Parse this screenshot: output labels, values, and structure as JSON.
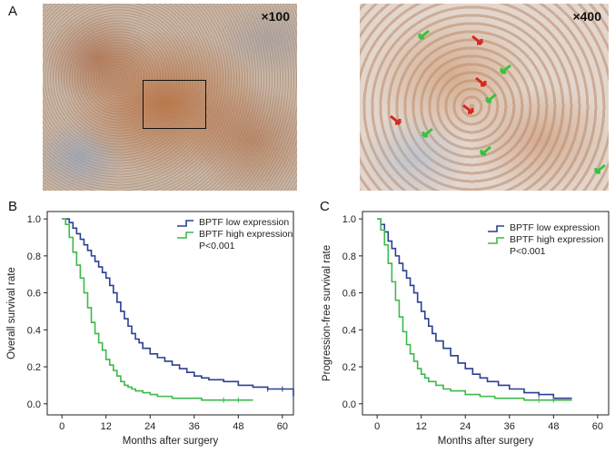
{
  "panels": {
    "A": {
      "letter": "A",
      "left_mag": "×100",
      "right_mag": "×400"
    },
    "B": {
      "letter": "B"
    },
    "C": {
      "letter": "C"
    }
  },
  "colors": {
    "low": "#2b3f8f",
    "high": "#3cb94a",
    "stain_brown": "#b8794e",
    "stain_blue": "#8aa6c4",
    "arrow_red": "#d8261f",
    "arrow_green": "#37c33c"
  },
  "chart_data": [
    {
      "id": "B",
      "type": "line",
      "xlabel": "Months after surgery",
      "ylabel": "Overall survival rate",
      "xlim": [
        -4,
        63
      ],
      "ylim": [
        -0.06,
        1.04
      ],
      "xticks": [
        0,
        12,
        24,
        36,
        48,
        60
      ],
      "yticks": [
        0.0,
        0.2,
        0.4,
        0.6,
        0.8,
        1.0
      ],
      "annotation": "P<0.001",
      "series": [
        {
          "name": "BPTF low expression",
          "color": "#2b3f8f",
          "x": [
            0,
            2,
            3,
            4,
            5,
            6,
            7,
            8,
            9,
            10,
            11,
            12,
            13,
            14,
            15,
            16,
            17,
            18,
            19,
            20,
            21,
            22,
            24,
            26,
            28,
            30,
            32,
            34,
            36,
            38,
            40,
            44,
            48,
            52,
            56,
            60,
            63
          ],
          "y": [
            1.0,
            0.98,
            0.95,
            0.92,
            0.89,
            0.86,
            0.83,
            0.8,
            0.77,
            0.74,
            0.71,
            0.68,
            0.64,
            0.6,
            0.55,
            0.5,
            0.46,
            0.42,
            0.38,
            0.35,
            0.33,
            0.3,
            0.27,
            0.25,
            0.23,
            0.21,
            0.19,
            0.17,
            0.15,
            0.14,
            0.13,
            0.12,
            0.1,
            0.09,
            0.08,
            0.08,
            0.04
          ]
        },
        {
          "name": "BPTF high expression",
          "color": "#3cb94a",
          "x": [
            0,
            1,
            2,
            3,
            4,
            5,
            6,
            7,
            8,
            9,
            10,
            11,
            12,
            13,
            14,
            15,
            16,
            17,
            18,
            19,
            20,
            22,
            24,
            26,
            28,
            30,
            34,
            38,
            44,
            48,
            52
          ],
          "y": [
            1.0,
            0.97,
            0.9,
            0.82,
            0.75,
            0.68,
            0.6,
            0.52,
            0.44,
            0.38,
            0.33,
            0.29,
            0.24,
            0.21,
            0.18,
            0.15,
            0.12,
            0.1,
            0.09,
            0.08,
            0.07,
            0.06,
            0.05,
            0.04,
            0.04,
            0.03,
            0.03,
            0.02,
            0.02,
            0.02,
            0.02
          ]
        }
      ],
      "legend_position": "top-right"
    },
    {
      "id": "C",
      "type": "line",
      "xlabel": "Months after surgery",
      "ylabel": "Progression-free survival rate",
      "xlim": [
        -4,
        63
      ],
      "ylim": [
        -0.06,
        1.04
      ],
      "xticks": [
        0,
        12,
        24,
        36,
        48,
        60
      ],
      "yticks": [
        0.0,
        0.2,
        0.4,
        0.6,
        0.8,
        1.0
      ],
      "annotation": "P<0.001",
      "series": [
        {
          "name": "BPTF low expression",
          "color": "#2b3f8f",
          "x": [
            0,
            1,
            2,
            3,
            4,
            5,
            6,
            7,
            8,
            9,
            10,
            11,
            12,
            13,
            14,
            15,
            16,
            18,
            20,
            22,
            24,
            26,
            28,
            30,
            33,
            36,
            40,
            44,
            48,
            53
          ],
          "y": [
            1.0,
            0.97,
            0.93,
            0.88,
            0.84,
            0.8,
            0.76,
            0.72,
            0.68,
            0.64,
            0.6,
            0.55,
            0.5,
            0.46,
            0.42,
            0.38,
            0.34,
            0.3,
            0.26,
            0.22,
            0.19,
            0.16,
            0.14,
            0.12,
            0.1,
            0.08,
            0.06,
            0.05,
            0.03,
            0.03
          ]
        },
        {
          "name": "BPTF high expression",
          "color": "#3cb94a",
          "x": [
            0,
            1,
            2,
            3,
            4,
            5,
            6,
            7,
            8,
            9,
            10,
            11,
            12,
            13,
            14,
            16,
            18,
            20,
            24,
            28,
            32,
            36,
            40,
            44,
            48,
            53
          ],
          "y": [
            1.0,
            0.94,
            0.86,
            0.76,
            0.66,
            0.56,
            0.47,
            0.39,
            0.32,
            0.27,
            0.23,
            0.19,
            0.16,
            0.14,
            0.12,
            0.1,
            0.08,
            0.07,
            0.05,
            0.04,
            0.03,
            0.03,
            0.02,
            0.02,
            0.02,
            0.02
          ]
        }
      ],
      "legend_position": "top-right"
    }
  ]
}
